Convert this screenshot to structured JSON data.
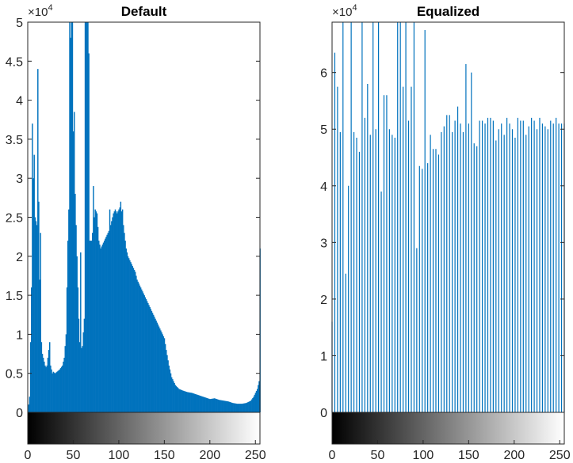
{
  "chart_data": [
    {
      "type": "bar",
      "title": "Default",
      "xlabel": "",
      "ylabel": "",
      "xlim": [
        0,
        255
      ],
      "ylim": [
        0,
        50000
      ],
      "y_exponent_label": "×10",
      "y_exponent_power": "4",
      "xticks": [
        "0",
        "50",
        "100",
        "150",
        "200",
        "250"
      ],
      "xtick_values": [
        0,
        50,
        100,
        150,
        200,
        250
      ],
      "yticks": [
        "0",
        "0.5",
        "1",
        "1.5",
        "2",
        "2.5",
        "3",
        "3.5",
        "4",
        "4.5",
        "5"
      ],
      "ytick_values": [
        0,
        5000,
        10000,
        15000,
        20000,
        25000,
        30000,
        35000,
        40000,
        45000,
        50000
      ],
      "bar_color": "#0072BD",
      "colorbar": "grayscale 0-255",
      "profile_points": [
        [
          0,
          0
        ],
        [
          1,
          1000
        ],
        [
          2,
          2000
        ],
        [
          3,
          9000
        ],
        [
          4,
          16000
        ],
        [
          5,
          23000
        ],
        [
          6,
          27000
        ],
        [
          7,
          27500
        ],
        [
          8,
          25000
        ],
        [
          9,
          24500
        ],
        [
          10,
          24000
        ],
        [
          11,
          22000
        ],
        [
          12,
          20000
        ],
        [
          13,
          17000
        ],
        [
          14,
          13000
        ],
        [
          15,
          9000
        ],
        [
          16,
          7500
        ],
        [
          17,
          7000
        ],
        [
          18,
          6500
        ],
        [
          19,
          6000
        ],
        [
          20,
          5800
        ],
        [
          21,
          6000
        ],
        [
          22,
          7000
        ],
        [
          23,
          8000
        ],
        [
          24,
          7000
        ],
        [
          25,
          6000
        ],
        [
          26,
          5500
        ],
        [
          27,
          5000
        ],
        [
          28,
          5200
        ],
        [
          30,
          5000
        ],
        [
          32,
          5200
        ],
        [
          35,
          5500
        ],
        [
          38,
          6000
        ],
        [
          40,
          7000
        ],
        [
          42,
          10000
        ],
        [
          43,
          16000
        ],
        [
          44,
          22000
        ],
        [
          45,
          26000
        ],
        [
          46,
          28000
        ],
        [
          47,
          30000
        ],
        [
          48,
          34000
        ],
        [
          49,
          38000
        ],
        [
          50,
          36000
        ],
        [
          51,
          32000
        ],
        [
          52,
          28000
        ],
        [
          53,
          24000
        ],
        [
          54,
          20000
        ],
        [
          55,
          16000
        ],
        [
          56,
          12000
        ],
        [
          57,
          9000
        ],
        [
          58,
          8000
        ],
        [
          60,
          8500
        ],
        [
          62,
          12000
        ],
        [
          63,
          20000
        ],
        [
          64,
          28000
        ],
        [
          65,
          33000
        ],
        [
          66,
          29000
        ],
        [
          67,
          24000
        ],
        [
          68,
          22000
        ],
        [
          70,
          22000
        ],
        [
          72,
          24000
        ],
        [
          74,
          26000
        ],
        [
          76,
          25500
        ],
        [
          78,
          22000
        ],
        [
          80,
          21000
        ],
        [
          82,
          21500
        ],
        [
          84,
          22000
        ],
        [
          86,
          22500
        ],
        [
          88,
          23000
        ],
        [
          90,
          23500
        ],
        [
          92,
          24500
        ],
        [
          94,
          25500
        ],
        [
          96,
          26000
        ],
        [
          98,
          25500
        ],
        [
          100,
          26000
        ],
        [
          102,
          26500
        ],
        [
          104,
          25000
        ],
        [
          106,
          23000
        ],
        [
          108,
          21000
        ],
        [
          110,
          20000
        ],
        [
          112,
          19500
        ],
        [
          114,
          19000
        ],
        [
          116,
          18500
        ],
        [
          118,
          18000
        ],
        [
          120,
          17000
        ],
        [
          124,
          16000
        ],
        [
          128,
          15000
        ],
        [
          132,
          14000
        ],
        [
          136,
          13000
        ],
        [
          140,
          12000
        ],
        [
          144,
          11000
        ],
        [
          148,
          10000
        ],
        [
          150,
          9500
        ],
        [
          152,
          8000
        ],
        [
          155,
          6000
        ],
        [
          158,
          4500
        ],
        [
          162,
          3500
        ],
        [
          166,
          3000
        ],
        [
          170,
          2800
        ],
        [
          175,
          2600
        ],
        [
          180,
          2500
        ],
        [
          185,
          2300
        ],
        [
          190,
          2100
        ],
        [
          195,
          1900
        ],
        [
          200,
          1700
        ],
        [
          205,
          1800
        ],
        [
          210,
          1600
        ],
        [
          215,
          1500
        ],
        [
          220,
          1400
        ],
        [
          225,
          1200
        ],
        [
          230,
          1100
        ],
        [
          235,
          1100
        ],
        [
          240,
          1200
        ],
        [
          245,
          1500
        ],
        [
          248,
          2000
        ],
        [
          250,
          2500
        ],
        [
          252,
          3000
        ],
        [
          253,
          3500
        ],
        [
          254,
          4000
        ],
        [
          255,
          21000
        ]
      ],
      "spikes": [
        [
          5,
          37000
        ],
        [
          6,
          30000
        ],
        [
          7,
          33000
        ],
        [
          11,
          44000
        ],
        [
          12,
          27000
        ],
        [
          14,
          23000
        ],
        [
          24,
          9000
        ],
        [
          46,
          50000
        ],
        [
          47,
          48000
        ],
        [
          48,
          50000
        ],
        [
          49,
          50000
        ],
        [
          51,
          38500
        ],
        [
          58,
          20500
        ],
        [
          63,
          50000
        ],
        [
          64,
          50000
        ],
        [
          65,
          50000
        ],
        [
          66,
          50000
        ],
        [
          67,
          46000
        ],
        [
          72,
          29000
        ],
        [
          90,
          26000
        ],
        [
          102,
          27000
        ],
        [
          104,
          26000
        ]
      ]
    },
    {
      "type": "bar",
      "title": "Equalized",
      "xlabel": "",
      "ylabel": "",
      "xlim": [
        0,
        255
      ],
      "ylim": [
        0,
        68900
      ],
      "y_exponent_label": "×10",
      "y_exponent_power": "4",
      "xticks": [
        "0",
        "50",
        "100",
        "150",
        "200",
        "250"
      ],
      "xtick_values": [
        0,
        50,
        100,
        150,
        200,
        250
      ],
      "yticks": [
        "0",
        "1",
        "2",
        "3",
        "4",
        "5",
        "6"
      ],
      "ytick_values": [
        0,
        10000,
        20000,
        30000,
        40000,
        50000,
        60000
      ],
      "bar_color": "#0072BD",
      "colorbar": "grayscale 0-255",
      "bars": [
        [
          0,
          16000
        ],
        [
          3,
          63500
        ],
        [
          6,
          57500
        ],
        [
          9,
          49500
        ],
        [
          12,
          68900
        ],
        [
          15,
          24500
        ],
        [
          18,
          40000
        ],
        [
          21,
          68900
        ],
        [
          24,
          49500
        ],
        [
          27,
          48500
        ],
        [
          30,
          46000
        ],
        [
          33,
          68900
        ],
        [
          36,
          52000
        ],
        [
          39,
          58000
        ],
        [
          42,
          49000
        ],
        [
          45,
          68900
        ],
        [
          48,
          50000
        ],
        [
          51,
          68900
        ],
        [
          54,
          39000
        ],
        [
          57,
          56000
        ],
        [
          60,
          56000
        ],
        [
          63,
          50000
        ],
        [
          66,
          49000
        ],
        [
          69,
          48500
        ],
        [
          72,
          68900
        ],
        [
          75,
          68900
        ],
        [
          78,
          57500
        ],
        [
          81,
          68900
        ],
        [
          84,
          51500
        ],
        [
          87,
          57500
        ],
        [
          90,
          68900
        ],
        [
          93,
          29000
        ],
        [
          96,
          43500
        ],
        [
          99,
          43000
        ],
        [
          102,
          67500
        ],
        [
          105,
          44000
        ],
        [
          108,
          49000
        ],
        [
          111,
          46500
        ],
        [
          114,
          46500
        ],
        [
          117,
          45500
        ],
        [
          120,
          49500
        ],
        [
          123,
          50500
        ],
        [
          126,
          52500
        ],
        [
          129,
          52500
        ],
        [
          132,
          49500
        ],
        [
          135,
          51500
        ],
        [
          138,
          54000
        ],
        [
          141,
          51000
        ],
        [
          144,
          49500
        ],
        [
          147,
          61500
        ],
        [
          150,
          51000
        ],
        [
          153,
          60000
        ],
        [
          156,
          47500
        ],
        [
          159,
          47000
        ],
        [
          162,
          51500
        ],
        [
          165,
          51500
        ],
        [
          168,
          51000
        ],
        [
          171,
          52000
        ],
        [
          174,
          52000
        ],
        [
          177,
          51500
        ],
        [
          180,
          48000
        ],
        [
          183,
          50000
        ],
        [
          186,
          51000
        ],
        [
          189,
          49000
        ],
        [
          192,
          52000
        ],
        [
          195,
          51000
        ],
        [
          198,
          50000
        ],
        [
          201,
          48500
        ],
        [
          204,
          52000
        ],
        [
          207,
          51500
        ],
        [
          210,
          51500
        ],
        [
          213,
          49000
        ],
        [
          216,
          50500
        ],
        [
          219,
          52000
        ],
        [
          222,
          51500
        ],
        [
          225,
          50000
        ],
        [
          228,
          52000
        ],
        [
          231,
          51000
        ],
        [
          234,
          50500
        ],
        [
          237,
          50000
        ],
        [
          240,
          51500
        ],
        [
          243,
          51000
        ],
        [
          246,
          52000
        ],
        [
          249,
          51000
        ],
        [
          252,
          51000
        ],
        [
          255,
          51000
        ]
      ]
    }
  ]
}
